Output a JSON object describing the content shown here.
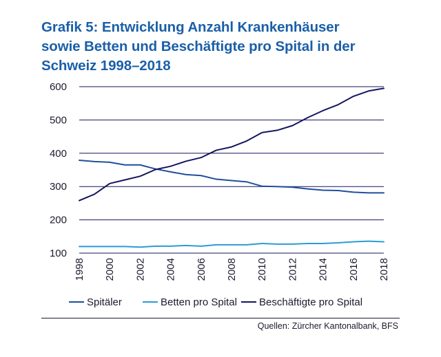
{
  "header": {
    "title_lines": [
      "Grafik 5: Entwicklung Anzahl Krankenhäuser",
      "sowie Betten und Beschäftigte pro Spital in der",
      "Schweiz 1998–2018"
    ]
  },
  "footer": {
    "source": "Quellen: Zürcher Kantonalbank, BFS"
  },
  "colors": {
    "title": "#1a5fa8",
    "spitaeler": "#1f4e9c",
    "betten": "#2a9bd8",
    "beschaeftigte": "#14145e",
    "grid": "#14145e"
  },
  "chart_data": {
    "type": "line",
    "title": "Grafik 5: Entwicklung Anzahl Krankenhäuser sowie Betten und Beschäftigte pro Spital in der Schweiz 1998–2018",
    "xlabel": "",
    "ylabel": "",
    "ylim": [
      100,
      600
    ],
    "yticks": [
      100,
      200,
      300,
      400,
      500,
      600
    ],
    "x": [
      1998,
      1999,
      2000,
      2001,
      2002,
      2003,
      2004,
      2005,
      2006,
      2007,
      2008,
      2009,
      2010,
      2011,
      2012,
      2013,
      2014,
      2015,
      2016,
      2017,
      2018
    ],
    "xticks": [
      "1998",
      "2000",
      "2002",
      "2004",
      "2006",
      "2008",
      "2010",
      "2012",
      "2014",
      "2016",
      "2018"
    ],
    "grid": true,
    "legend": "bottom",
    "series": [
      {
        "name": "Spitäler",
        "color_key": "spitaeler",
        "values": [
          379,
          375,
          373,
          365,
          365,
          353,
          344,
          336,
          333,
          322,
          318,
          314,
          301,
          300,
          298,
          293,
          289,
          288,
          283,
          281,
          281
        ]
      },
      {
        "name": "Betten pro Spital",
        "color_key": "betten",
        "values": [
          120,
          120,
          120,
          120,
          118,
          121,
          121,
          123,
          121,
          125,
          125,
          125,
          129,
          127,
          127,
          129,
          129,
          131,
          134,
          136,
          134
        ]
      },
      {
        "name": "Beschäftigte pro Spital",
        "color_key": "beschaeftigte",
        "values": [
          258,
          277,
          309,
          320,
          331,
          351,
          361,
          376,
          387,
          409,
          419,
          437,
          462,
          469,
          483,
          507,
          528,
          546,
          571,
          587,
          595
        ]
      }
    ]
  }
}
